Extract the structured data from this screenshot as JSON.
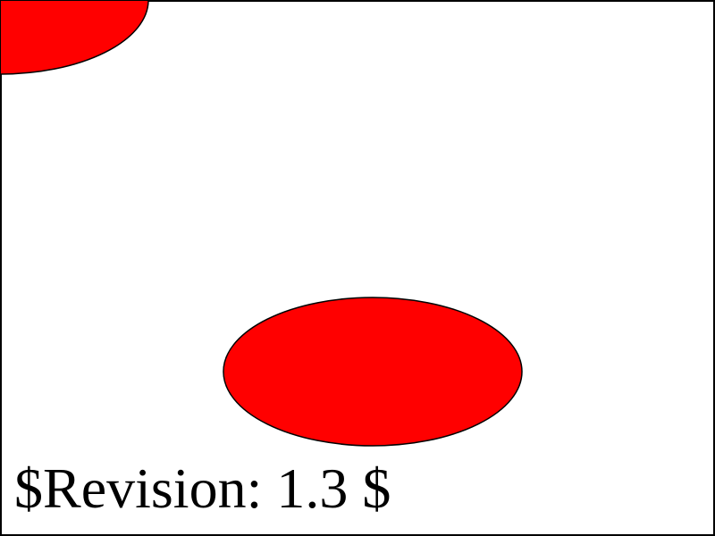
{
  "revision_label": "$Revision: 1.3 $",
  "colors": {
    "shape_fill": "#ff0000",
    "stroke": "#000000",
    "background": "#ffffff"
  }
}
